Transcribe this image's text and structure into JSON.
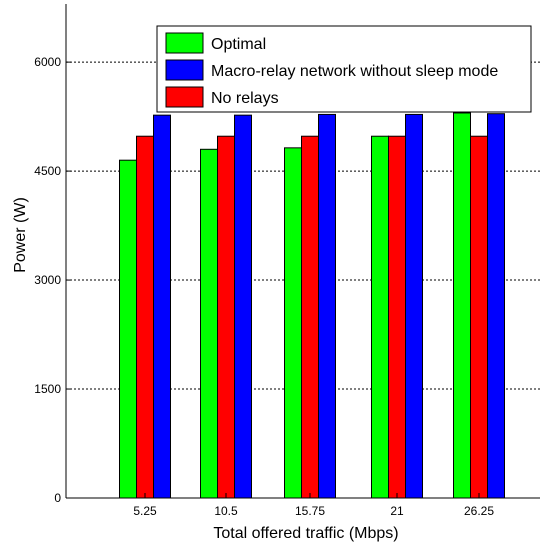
{
  "chart_data": {
    "type": "bar",
    "title": "",
    "xlabel": "Total offered traffic (Mbps)",
    "ylabel": "Power (W)",
    "categories": [
      "5.25",
      "10.5",
      "15.75",
      "21",
      "26.25"
    ],
    "series": [
      {
        "name": "Optimal",
        "color": "#00ff00",
        "values": [
          4650,
          4800,
          4820,
          4980,
          5300
        ]
      },
      {
        "name": "No relays",
        "color": "#ff0000",
        "values": [
          4980,
          4980,
          4980,
          4980,
          4980
        ]
      },
      {
        "name": "Macro-relay network without sleep mode",
        "color": "#0000ff",
        "values": [
          5270,
          5270,
          5280,
          5280,
          5290
        ]
      }
    ],
    "legend": {
      "placement": "top-right",
      "order": [
        "Optimal",
        "Macro-relay network without sleep mode",
        "No relays"
      ]
    },
    "ylim": [
      0,
      6800
    ],
    "yticks": [
      0,
      1500,
      3000,
      4500,
      6000
    ],
    "ytick_labels": [
      "0",
      "1500",
      "3000",
      "4500",
      "6000"
    ],
    "grid": "horizontal dashed at y ticks"
  }
}
